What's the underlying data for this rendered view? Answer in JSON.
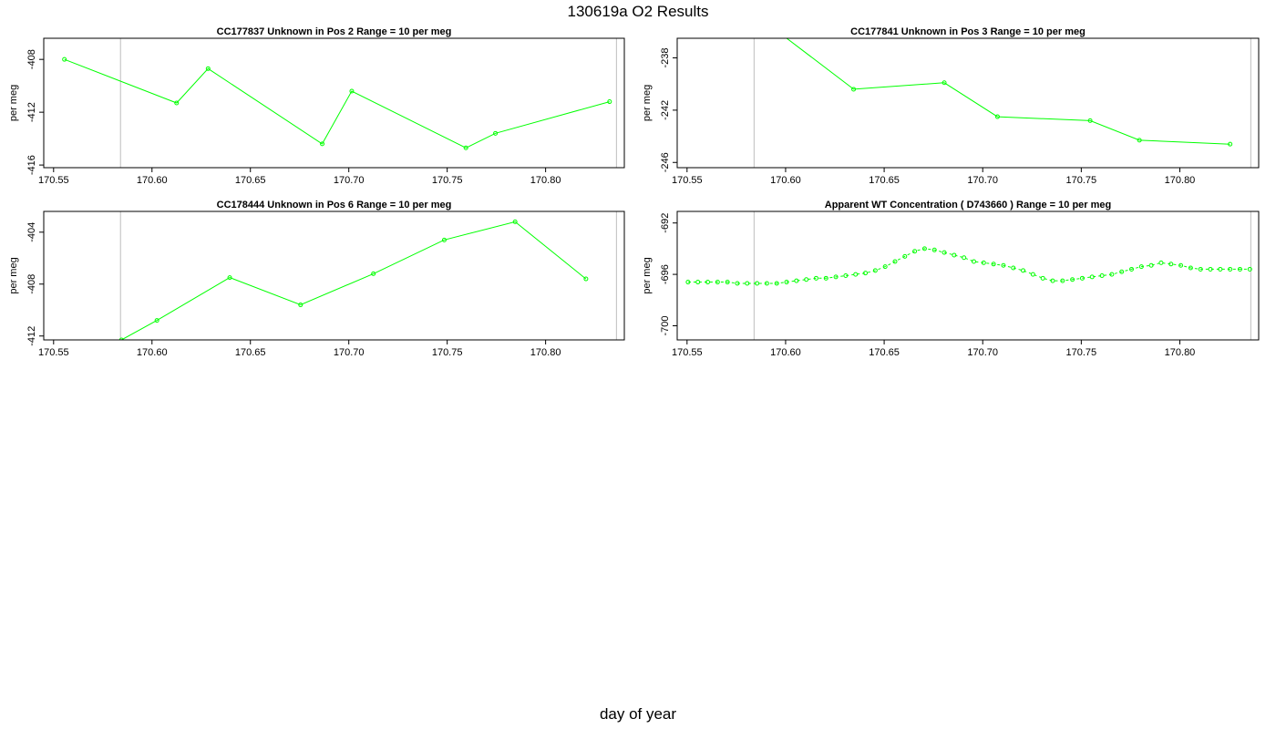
{
  "page": {
    "title": "130619a  O2 Results",
    "xlabel": "day of year"
  },
  "chart_data": [
    {
      "type": "line",
      "title": "CC177837    Unknown in Pos 2          Range = 10 per meg",
      "ylabel": "per meg",
      "xlim": [
        170.545,
        170.84
      ],
      "ylim": [
        -416.2,
        -406.4
      ],
      "xticks": [
        170.55,
        170.6,
        170.65,
        170.7,
        170.75,
        170.8
      ],
      "xtick_labels": [
        "170.55",
        "170.60",
        "170.65",
        "170.70",
        "170.75",
        "170.80"
      ],
      "yticks": [
        -408,
        -412,
        -416
      ],
      "ytick_labels": [
        "-408",
        "-412",
        "-416"
      ],
      "vlines": [
        170.584,
        170.836
      ],
      "series_color": "#00ff00",
      "vline_color": "#bebebe",
      "dashed": false,
      "x": [
        170.5555,
        170.6125,
        170.6285,
        170.6865,
        170.7015,
        170.7595,
        170.7745,
        170.8325
      ],
      "y": [
        -408.0,
        -411.3,
        -408.7,
        -414.4,
        -410.4,
        -414.7,
        -413.6,
        -411.2
      ]
    },
    {
      "type": "line",
      "title": "CC177841    Unknown in Pos 3          Range = 10 per meg",
      "ylabel": "per meg",
      "xlim": [
        170.545,
        170.84
      ],
      "ylim": [
        -246.4,
        -236.5
      ],
      "xticks": [
        170.55,
        170.6,
        170.65,
        170.7,
        170.75,
        170.8
      ],
      "xtick_labels": [
        "170.55",
        "170.60",
        "170.65",
        "170.70",
        "170.75",
        "170.80"
      ],
      "yticks": [
        -238,
        -242,
        -246
      ],
      "ytick_labels": [
        "-238",
        "-242",
        "-246"
      ],
      "vlines": [
        170.584,
        170.836
      ],
      "series_color": "#00ff00",
      "vline_color": "#bebebe",
      "dashed": false,
      "x": [
        170.5875,
        170.6345,
        170.6805,
        170.7075,
        170.7545,
        170.7795,
        170.8255
      ],
      "y": [
        -235.0,
        -240.4,
        -239.9,
        -242.5,
        -242.8,
        -244.3,
        -244.6
      ]
    },
    {
      "type": "line",
      "title": "CC178444    Unknown in Pos 6          Range = 10 per meg",
      "ylabel": "per meg",
      "xlim": [
        170.545,
        170.84
      ],
      "ylim": [
        -412.3,
        -402.4
      ],
      "xticks": [
        170.55,
        170.6,
        170.65,
        170.7,
        170.75,
        170.8
      ],
      "xtick_labels": [
        "170.55",
        "170.60",
        "170.65",
        "170.70",
        "170.75",
        "170.80"
      ],
      "yticks": [
        -404,
        -408,
        -412
      ],
      "ytick_labels": [
        "-404",
        "-408",
        "-412"
      ],
      "vlines": [
        170.584,
        170.836
      ],
      "series_color": "#00ff00",
      "vline_color": "#bebebe",
      "dashed": false,
      "x": [
        170.5845,
        170.6025,
        170.6395,
        170.6755,
        170.7125,
        170.7485,
        170.7845,
        170.8205
      ],
      "y": [
        -412.3,
        -410.8,
        -407.5,
        -409.6,
        -407.2,
        -404.6,
        -403.2,
        -407.6
      ]
    },
    {
      "type": "line",
      "title": "Apparent WT Concentration ( D743660 )          Range = 10 per meg",
      "ylabel": "per meg",
      "xlim": [
        170.545,
        170.84
      ],
      "ylim": [
        -701.1,
        -691.1
      ],
      "xticks": [
        170.55,
        170.6,
        170.65,
        170.7,
        170.75,
        170.8
      ],
      "xtick_labels": [
        "170.55",
        "170.60",
        "170.65",
        "170.70",
        "170.75",
        "170.80"
      ],
      "yticks": [
        -692,
        -696,
        -700
      ],
      "ytick_labels": [
        "-692",
        "-696",
        "-700"
      ],
      "vlines": [
        170.584,
        170.836
      ],
      "series_color": "#00ff00",
      "vline_color": "#bebebe",
      "dashed": true,
      "x": [
        170.5505,
        170.5555,
        170.5605,
        170.5655,
        170.5705,
        170.5755,
        170.5805,
        170.5855,
        170.5905,
        170.5955,
        170.6005,
        170.6055,
        170.6105,
        170.6155,
        170.6205,
        170.6255,
        170.6305,
        170.6355,
        170.6405,
        170.6455,
        170.6505,
        170.6555,
        170.6605,
        170.6655,
        170.6705,
        170.6755,
        170.6805,
        170.6855,
        170.6905,
        170.6955,
        170.7005,
        170.7055,
        170.7105,
        170.7155,
        170.7205,
        170.7255,
        170.7305,
        170.7355,
        170.7405,
        170.7455,
        170.7505,
        170.7555,
        170.7605,
        170.7655,
        170.7705,
        170.7755,
        170.7805,
        170.7855,
        170.7905,
        170.7955,
        170.8005,
        170.8055,
        170.8105,
        170.8155,
        170.8205,
        170.8255,
        170.8305,
        170.8355
      ],
      "y": [
        -696.6,
        -696.6,
        -696.6,
        -696.6,
        -696.6,
        -696.7,
        -696.7,
        -696.7,
        -696.7,
        -696.7,
        -696.6,
        -696.5,
        -696.4,
        -696.3,
        -696.3,
        -696.2,
        -696.1,
        -696.0,
        -695.9,
        -695.7,
        -695.4,
        -695.0,
        -694.6,
        -694.2,
        -694.0,
        -694.1,
        -694.3,
        -694.5,
        -694.7,
        -695.0,
        -695.1,
        -695.2,
        -695.3,
        -695.5,
        -695.7,
        -696.0,
        -696.3,
        -696.5,
        -696.5,
        -696.4,
        -696.3,
        -696.2,
        -696.1,
        -696.0,
        -695.8,
        -695.6,
        -695.4,
        -695.3,
        -695.1,
        -695.2,
        -695.3,
        -695.5,
        -695.6,
        -695.6,
        -695.6,
        -695.6,
        -695.6,
        -695.6
      ]
    }
  ]
}
